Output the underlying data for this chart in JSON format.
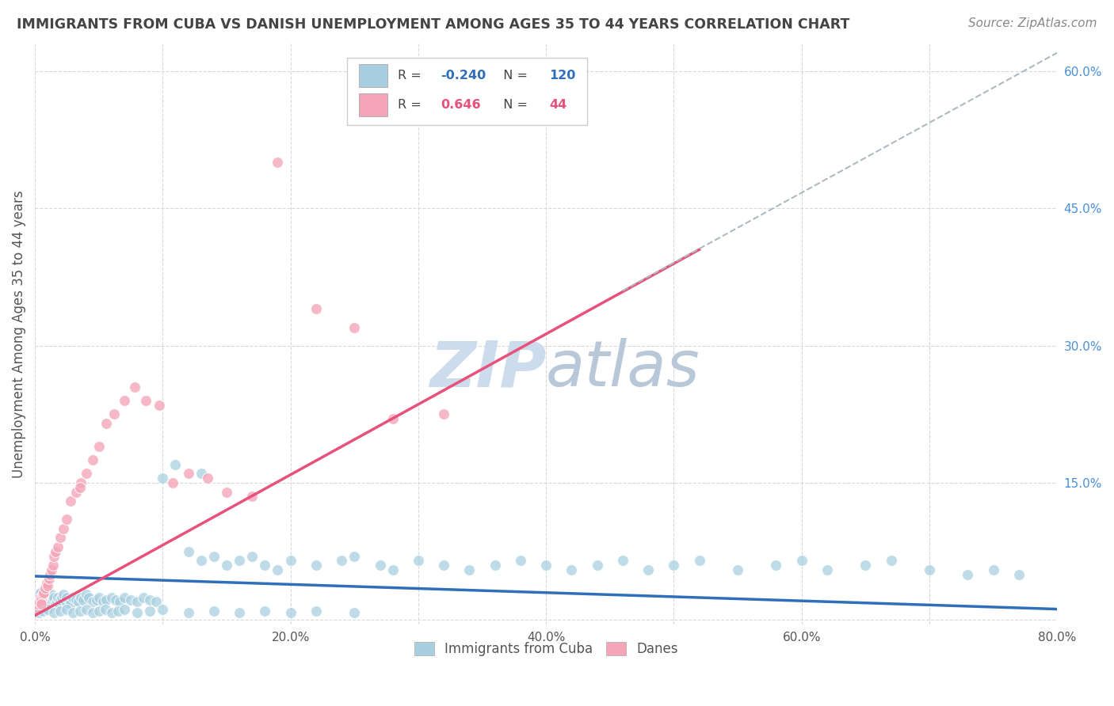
{
  "title": "IMMIGRANTS FROM CUBA VS DANISH UNEMPLOYMENT AMONG AGES 35 TO 44 YEARS CORRELATION CHART",
  "source": "Source: ZipAtlas.com",
  "ylabel": "Unemployment Among Ages 35 to 44 years",
  "xlim": [
    0.0,
    0.8
  ],
  "ylim": [
    -0.005,
    0.63
  ],
  "x_ticks": [
    0.0,
    0.1,
    0.2,
    0.3,
    0.4,
    0.5,
    0.6,
    0.7,
    0.8
  ],
  "x_tick_labels": [
    "0.0%",
    "",
    "20.0%",
    "",
    "40.0%",
    "",
    "60.0%",
    "",
    "80.0%"
  ],
  "y_ticks_right": [
    0.0,
    0.15,
    0.3,
    0.45,
    0.6
  ],
  "y_tick_labels_right": [
    "",
    "15.0%",
    "30.0%",
    "45.0%",
    "60.0%"
  ],
  "blue_color": "#a8cfe0",
  "pink_color": "#f4a6b8",
  "blue_line_color": "#2f6fba",
  "pink_line_color": "#e8517a",
  "dashed_line_color": "#b0b8c0",
  "grid_color": "#d8d8d8",
  "title_color": "#444444",
  "right_label_color": "#4a90d9",
  "watermark_color": "#ccdcec",
  "legend_R1": "-0.240",
  "legend_N1": "120",
  "legend_R2": "0.646",
  "legend_N2": "44",
  "blue_scatter_x": [
    0.001,
    0.001,
    0.002,
    0.002,
    0.003,
    0.003,
    0.003,
    0.004,
    0.004,
    0.005,
    0.005,
    0.006,
    0.007,
    0.007,
    0.008,
    0.008,
    0.009,
    0.01,
    0.01,
    0.011,
    0.012,
    0.013,
    0.014,
    0.015,
    0.016,
    0.017,
    0.018,
    0.019,
    0.02,
    0.021,
    0.022,
    0.024,
    0.025,
    0.027,
    0.028,
    0.03,
    0.032,
    0.034,
    0.036,
    0.038,
    0.04,
    0.042,
    0.045,
    0.048,
    0.05,
    0.053,
    0.056,
    0.06,
    0.063,
    0.066,
    0.07,
    0.075,
    0.08,
    0.085,
    0.09,
    0.095,
    0.1,
    0.11,
    0.12,
    0.13,
    0.14,
    0.15,
    0.16,
    0.17,
    0.18,
    0.19,
    0.2,
    0.22,
    0.24,
    0.25,
    0.27,
    0.28,
    0.3,
    0.32,
    0.34,
    0.36,
    0.38,
    0.4,
    0.42,
    0.44,
    0.46,
    0.48,
    0.5,
    0.52,
    0.55,
    0.58,
    0.6,
    0.62,
    0.65,
    0.67,
    0.7,
    0.73,
    0.75,
    0.77,
    0.003,
    0.006,
    0.01,
    0.015,
    0.02,
    0.025,
    0.03,
    0.035,
    0.04,
    0.045,
    0.05,
    0.055,
    0.06,
    0.065,
    0.07,
    0.08,
    0.09,
    0.1,
    0.12,
    0.14,
    0.16,
    0.18,
    0.2,
    0.22,
    0.25,
    0.13
  ],
  "blue_scatter_y": [
    0.02,
    0.015,
    0.025,
    0.018,
    0.022,
    0.028,
    0.015,
    0.02,
    0.03,
    0.025,
    0.018,
    0.022,
    0.028,
    0.02,
    0.025,
    0.018,
    0.022,
    0.03,
    0.015,
    0.025,
    0.02,
    0.028,
    0.022,
    0.025,
    0.018,
    0.02,
    0.025,
    0.018,
    0.022,
    0.025,
    0.028,
    0.02,
    0.025,
    0.022,
    0.018,
    0.025,
    0.022,
    0.02,
    0.025,
    0.022,
    0.028,
    0.025,
    0.02,
    0.022,
    0.025,
    0.02,
    0.022,
    0.025,
    0.022,
    0.02,
    0.025,
    0.022,
    0.02,
    0.025,
    0.022,
    0.02,
    0.155,
    0.17,
    0.075,
    0.065,
    0.07,
    0.06,
    0.065,
    0.07,
    0.06,
    0.055,
    0.065,
    0.06,
    0.065,
    0.07,
    0.06,
    0.055,
    0.065,
    0.06,
    0.055,
    0.06,
    0.065,
    0.06,
    0.055,
    0.06,
    0.065,
    0.055,
    0.06,
    0.065,
    0.055,
    0.06,
    0.065,
    0.055,
    0.06,
    0.065,
    0.055,
    0.05,
    0.055,
    0.05,
    0.008,
    0.01,
    0.012,
    0.008,
    0.01,
    0.012,
    0.008,
    0.01,
    0.012,
    0.008,
    0.01,
    0.012,
    0.008,
    0.01,
    0.012,
    0.008,
    0.01,
    0.012,
    0.008,
    0.01,
    0.008,
    0.01,
    0.008,
    0.01,
    0.008,
    0.16
  ],
  "pink_scatter_x": [
    0.001,
    0.002,
    0.003,
    0.004,
    0.005,
    0.006,
    0.007,
    0.008,
    0.009,
    0.01,
    0.011,
    0.012,
    0.013,
    0.014,
    0.015,
    0.016,
    0.018,
    0.02,
    0.022,
    0.025,
    0.028,
    0.032,
    0.036,
    0.04,
    0.045,
    0.05,
    0.056,
    0.062,
    0.07,
    0.078,
    0.087,
    0.097,
    0.108,
    0.12,
    0.135,
    0.15,
    0.17,
    0.19,
    0.22,
    0.25,
    0.28,
    0.32,
    0.005,
    0.035
  ],
  "pink_scatter_y": [
    0.012,
    0.018,
    0.02,
    0.025,
    0.022,
    0.028,
    0.03,
    0.035,
    0.04,
    0.038,
    0.045,
    0.05,
    0.055,
    0.06,
    0.07,
    0.075,
    0.08,
    0.09,
    0.1,
    0.11,
    0.13,
    0.14,
    0.15,
    0.16,
    0.175,
    0.19,
    0.215,
    0.225,
    0.24,
    0.255,
    0.24,
    0.235,
    0.15,
    0.16,
    0.155,
    0.14,
    0.135,
    0.5,
    0.34,
    0.32,
    0.22,
    0.225,
    0.018,
    0.145
  ],
  "blue_trend_x": [
    0.0,
    0.8
  ],
  "blue_trend_y": [
    0.048,
    0.012
  ],
  "pink_trend_x": [
    0.0,
    0.52
  ],
  "pink_trend_y": [
    0.005,
    0.405
  ],
  "dashed_trend_x": [
    0.46,
    0.8
  ],
  "dashed_trend_y": [
    0.36,
    0.62
  ],
  "figsize": [
    14.06,
    8.92
  ],
  "dpi": 100
}
